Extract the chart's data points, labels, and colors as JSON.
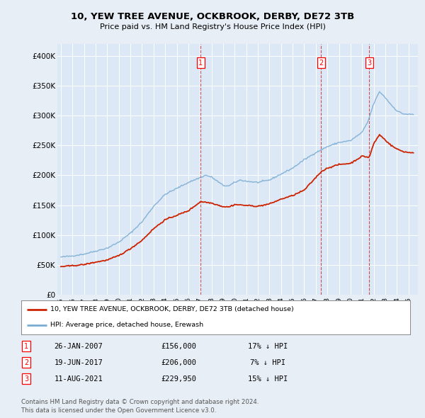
{
  "title": "10, YEW TREE AVENUE, OCKBROOK, DERBY, DE72 3TB",
  "subtitle": "Price paid vs. HM Land Registry's House Price Index (HPI)",
  "hpi_color": "#7aadd4",
  "price_color": "#cc2200",
  "dashed_color": "#cc3333",
  "background_color": "#e8eef5",
  "plot_bg_color": "#dce8f5",
  "grid_color": "#ffffff",
  "sale_dates": [
    2007.07,
    2017.46,
    2021.61
  ],
  "sale_prices": [
    156000,
    206000,
    229950
  ],
  "sale_labels": [
    "1",
    "2",
    "3"
  ],
  "legend_entries": [
    "10, YEW TREE AVENUE, OCKBROOK, DERBY, DE72 3TB (detached house)",
    "HPI: Average price, detached house, Erewash"
  ],
  "table_data": [
    [
      "1",
      "26-JAN-2007",
      "£156,000",
      "17% ↓ HPI"
    ],
    [
      "2",
      "19-JUN-2017",
      "£206,000",
      "7% ↓ HPI"
    ],
    [
      "3",
      "11-AUG-2021",
      "£229,950",
      "15% ↓ HPI"
    ]
  ],
  "footnote1": "Contains HM Land Registry data © Crown copyright and database right 2024.",
  "footnote2": "This data is licensed under the Open Government Licence v3.0.",
  "ylim": [
    0,
    420000
  ],
  "yticks": [
    0,
    50000,
    100000,
    150000,
    200000,
    250000,
    300000,
    350000,
    400000
  ],
  "ytick_labels": [
    "£0",
    "£50K",
    "£100K",
    "£150K",
    "£200K",
    "£250K",
    "£300K",
    "£350K",
    "£400K"
  ],
  "xlim_start": 1994.7,
  "xlim_end": 2025.8,
  "hpi_anchors_x": [
    1995.0,
    1996.0,
    1997.0,
    1998.0,
    1999.0,
    2000.0,
    2001.0,
    2002.0,
    2003.0,
    2004.0,
    2005.0,
    2006.0,
    2007.0,
    2007.5,
    2008.0,
    2008.5,
    2009.0,
    2009.5,
    2010.0,
    2010.5,
    2011.0,
    2012.0,
    2013.0,
    2014.0,
    2015.0,
    2016.0,
    2017.0,
    2018.0,
    2019.0,
    2020.0,
    2020.5,
    2021.0,
    2021.5,
    2022.0,
    2022.5,
    2023.0,
    2023.5,
    2024.0,
    2024.5,
    2025.0
  ],
  "hpi_anchors_y": [
    63000,
    65000,
    68000,
    73000,
    78000,
    88000,
    103000,
    122000,
    148000,
    168000,
    178000,
    188000,
    196000,
    200000,
    197000,
    190000,
    183000,
    182000,
    188000,
    192000,
    190000,
    188000,
    192000,
    202000,
    212000,
    226000,
    238000,
    248000,
    255000,
    258000,
    265000,
    272000,
    290000,
    320000,
    340000,
    330000,
    318000,
    308000,
    303000,
    302000
  ],
  "price_anchors_x": [
    1995.0,
    1996.0,
    1997.0,
    1998.0,
    1999.0,
    2000.0,
    2001.0,
    2002.0,
    2003.0,
    2004.0,
    2005.0,
    2006.0,
    2007.07,
    2008.0,
    2009.0,
    2009.5,
    2010.0,
    2011.0,
    2012.0,
    2013.0,
    2014.0,
    2015.0,
    2016.0,
    2017.46,
    2018.0,
    2019.0,
    2020.0,
    2020.5,
    2021.0,
    2021.61,
    2022.0,
    2022.5,
    2023.0,
    2023.5,
    2024.0,
    2024.5,
    2025.0
  ],
  "price_anchors_y": [
    47000,
    48500,
    50500,
    54500,
    58000,
    65500,
    77000,
    91000,
    110500,
    125500,
    133000,
    140500,
    156000,
    153500,
    147500,
    147000,
    151000,
    149500,
    148000,
    152000,
    160000,
    166000,
    175000,
    206000,
    212000,
    218000,
    220000,
    226000,
    232000,
    229950,
    253000,
    268000,
    259000,
    250000,
    244000,
    240000,
    238000
  ]
}
